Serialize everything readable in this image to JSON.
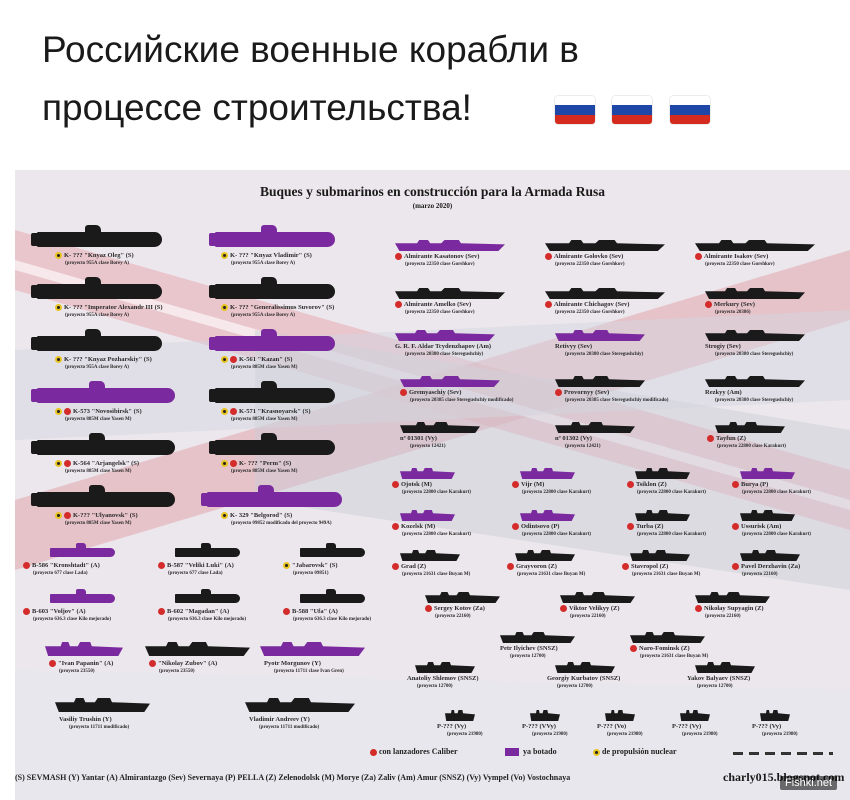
{
  "header": {
    "line1": "Российские военные корабли в",
    "line2": "процессе строительства!",
    "flags": [
      "russia-flag",
      "russia-flag",
      "russia-flag"
    ],
    "flag_colors": [
      "#ffffff",
      "#1f47a8",
      "#d52b1e"
    ]
  },
  "infographic": {
    "title": "Buques y submarinos en construcción para la Armada Rusa",
    "date": "(marzo 2020)",
    "colors": {
      "built": "#7a2a9e",
      "unbuilt": "#1a1a1a",
      "caliber": "#d42b2b",
      "nuclear": "#e8c420"
    },
    "submarines_left": [
      {
        "name": "K- ??? \"Knyaz Oleg\" (S)",
        "project": "(proyecto 955A clase Borey A)",
        "launched": false,
        "nuclear": true,
        "caliber": false
      },
      {
        "name": "K- ??? \"Imperator Alexandr III (S)",
        "project": "(proyecto 955A clase Borey A)",
        "launched": false,
        "nuclear": true,
        "caliber": false
      },
      {
        "name": "K- ??? \"Knyaz Pozharskiy\" (S)",
        "project": "(proyecto 955A clase Borey A)",
        "launched": false,
        "nuclear": true,
        "caliber": false
      },
      {
        "name": "K-573 \"Novosibirsk\" (S)",
        "project": "(proyecto 885M clase Yasen M)",
        "launched": true,
        "nuclear": true,
        "caliber": true
      },
      {
        "name": "K-564 \"Arjangelsk\" (S)",
        "project": "(proyecto 885M clase Yasen M)",
        "launched": false,
        "nuclear": true,
        "caliber": true
      },
      {
        "name": "K-??? \"Ulyanovsk\" (S)",
        "project": "(proyecto 885M clase Yasen M)",
        "launched": false,
        "nuclear": true,
        "caliber": true
      }
    ],
    "submarines_mid": [
      {
        "name": "K- ??? \"Knyaz Vladimir\" (S)",
        "project": "(proyecto 955A clase Borey A)",
        "launched": true,
        "nuclear": true,
        "caliber": false
      },
      {
        "name": "K- ??? \"Generalissimus Suvorov\" (S)",
        "project": "(proyecto 955A clase Borey A)",
        "launched": false,
        "nuclear": true,
        "caliber": false
      },
      {
        "name": "K-561 \"Kazan\" (S)",
        "project": "(proyecto 885M clase Yasen M)",
        "launched": true,
        "nuclear": true,
        "caliber": true
      },
      {
        "name": "K-571 \"Krasnoyarsk\" (S)",
        "project": "(proyecto 885M clase Yasen M)",
        "launched": false,
        "nuclear": true,
        "caliber": true
      },
      {
        "name": "K- ??? \"Perm\" (S)",
        "project": "(proyecto 885M clase Yasen M)",
        "launched": false,
        "nuclear": true,
        "caliber": true
      },
      {
        "name": "K- 329 \"Belgorod\" (S)",
        "project": "(proyecto 09852 modificado del proyecto 949A)",
        "launched": true,
        "nuclear": true,
        "caliber": false
      }
    ],
    "diesel_subs": [
      {
        "name": "B-586 \"Kronshtadt\" (A)",
        "project": "(proyecto 677 clase Lada)",
        "launched": true,
        "caliber": true
      },
      {
        "name": "B-587 \"Veliki Luki\" (A)",
        "project": "(proyecto 677 clase Lada)",
        "launched": false,
        "caliber": true
      },
      {
        "name": "\"Jabarovsk\" (S)",
        "project": "(proyecto 09851)",
        "launched": false,
        "nuclear": true
      },
      {
        "name": "B-603 \"Voljov\" (A)",
        "project": "(proyecto 636.3 clase Kilo mejorado)",
        "launched": true,
        "caliber": true
      },
      {
        "name": "B-602 \"Magadan\" (A)",
        "project": "(proyecto 636.3 clase Kilo mejorado)",
        "launched": false,
        "caliber": true
      },
      {
        "name": "B-588 \"Ufa\" (A)",
        "project": "(proyecto 636.3 clase Kilo mejorado)",
        "launched": false,
        "caliber": true
      }
    ],
    "ships": [
      {
        "name": "Almirante Kasatonov (Sev)",
        "project": "(proyecto 22350 clase Gorshkov)",
        "launched": true,
        "caliber": true
      },
      {
        "name": "Almirante Golovko (Sev)",
        "project": "(proyecto 22350 clase Gorshkov)",
        "launched": false,
        "caliber": true
      },
      {
        "name": "Almirante Isakov (Sev)",
        "project": "(proyecto 22350 clase Gorshkov)",
        "launched": false,
        "caliber": true
      },
      {
        "name": "Almirante Amelko (Sev)",
        "project": "(proyecto 22350 clase Gorshkov)",
        "launched": false,
        "caliber": true
      },
      {
        "name": "Almirante Chichagov (Sev)",
        "project": "(proyecto 22350 clase Gorshkov)",
        "launched": false,
        "caliber": true
      },
      {
        "name": "Merkury (Sev)",
        "project": "(proyecto 20386)",
        "launched": false,
        "caliber": true
      },
      {
        "name": "G. R. F. Aldar Tcydenzhapov (Am)",
        "project": "(proyecto 20380 clase Steregushchiy)",
        "launched": true,
        "caliber": false
      },
      {
        "name": "Retivyy (Sev)",
        "project": "(proyecto 20380 clase Steregushchiy)",
        "launched": true,
        "caliber": false
      },
      {
        "name": "Strogiy (Sev)",
        "project": "(proyecto 20380 clase Steregushchiy)",
        "launched": false,
        "caliber": false
      },
      {
        "name": "Gremyaschiy (Sev)",
        "project": "(proyecto 20385 clase Steregushchiy modificado)",
        "launched": true,
        "caliber": true
      },
      {
        "name": "Provornyy (Sev)",
        "project": "(proyecto 20385 clase Steregushchiy modificado)",
        "launched": false,
        "caliber": true
      },
      {
        "name": "Rezkyy (Am)",
        "project": "(proyecto 20380 clase Steregushchiy)",
        "launched": false,
        "caliber": false
      },
      {
        "name": "nº 01301 (Vy)",
        "project": "(proyecto 12421)",
        "launched": false,
        "caliber": false
      },
      {
        "name": "nº 01302 (Vy)",
        "project": "(proyecto 12421)",
        "launched": false,
        "caliber": false
      },
      {
        "name": "Tayfun (Z)",
        "project": "(proyecto 22800 clase Karakurt)",
        "launched": false,
        "caliber": true
      },
      {
        "name": "Ojotsk (M)",
        "project": "(proyecto 22800 clase Karakurt)",
        "launched": true,
        "caliber": true
      },
      {
        "name": "Vijr (M)",
        "project": "(proyecto 22800 clase Karakurt)",
        "launched": true,
        "caliber": true
      },
      {
        "name": "Tsiklon (Z)",
        "project": "(proyecto 22800 clase Karakurt)",
        "launched": false,
        "caliber": true
      },
      {
        "name": "Burya (P)",
        "project": "(proyecto 22800 clase Karakurt)",
        "launched": true,
        "caliber": true
      },
      {
        "name": "Kozelsk (M)",
        "project": "(proyecto 22800 clase Karakurt)",
        "launched": true,
        "caliber": true
      },
      {
        "name": "Odintsovo (P)",
        "project": "(proyecto 22800 clase Karakurt)",
        "launched": true,
        "caliber": true
      },
      {
        "name": "Turba (Z)",
        "project": "(proyecto 22800 clase Karakurt)",
        "launched": false,
        "caliber": true
      },
      {
        "name": "Ussurisk (Am)",
        "project": "(proyecto 22800 clase Karakurt)",
        "launched": false,
        "caliber": true
      },
      {
        "name": "Grad (Z)",
        "project": "(proyecto 21631 clase Buyan M)",
        "launched": false,
        "caliber": true
      },
      {
        "name": "Grayvoron (Z)",
        "project": "(proyecto 21631 clase Buyan M)",
        "launched": false,
        "caliber": true
      },
      {
        "name": "Stavropol (Z)",
        "project": "(proyecto 21631 clase Buyan M)",
        "launched": false,
        "caliber": true
      },
      {
        "name": "Pavel Derzhavin (Za)",
        "project": "(proyecto 22160)",
        "launched": false,
        "caliber": true
      },
      {
        "name": "Sergey Kotov (Za)",
        "project": "(proyecto 22160)",
        "launched": false,
        "caliber": true
      },
      {
        "name": "Viktor Velikyy (Z)",
        "project": "(proyecto 22160)",
        "launched": false,
        "caliber": true
      },
      {
        "name": "Nikolay Supyagin (Z)",
        "project": "(proyecto 22160)",
        "launched": false,
        "caliber": true
      },
      {
        "name": "Petr Ilyichev (SNSZ)",
        "project": "(proyecto 12700)",
        "launched": false,
        "caliber": false
      },
      {
        "name": "Naro-Fominsk (Z)",
        "project": "(proyecto 21631 clase Buyan M)",
        "launched": false,
        "caliber": true
      },
      {
        "name": "Anatoliy Shlemov (SNSZ)",
        "project": "(proyecto 12700)",
        "launched": false,
        "caliber": false
      },
      {
        "name": "Georgiy Kurbatov (SNSZ)",
        "project": "(proyecto 12700)",
        "launched": false,
        "caliber": false
      },
      {
        "name": "Yakov Balyaev (SNSZ)",
        "project": "(proyecto 12700)",
        "launched": false,
        "caliber": false
      },
      {
        "name": "P-??? (Vy)",
        "project": "(proyecto 21980)",
        "launched": false,
        "caliber": false
      },
      {
        "name": "P-??? (VVy)",
        "project": "(proyecto 21980)",
        "launched": false,
        "caliber": false
      },
      {
        "name": "P-??? (Vo)",
        "project": "(proyecto 21980)",
        "launched": false,
        "caliber": false
      },
      {
        "name": "P-??? (Vy)",
        "project": "(proyecto 21980)",
        "launched": false,
        "caliber": false
      },
      {
        "name": "P-??? (Vy)",
        "project": "(proyecto 21980)",
        "launched": false,
        "caliber": false
      }
    ],
    "bottom_left": [
      {
        "name": "\"Ivan Papanin\" (A)",
        "project": "(proyecto 23550)",
        "launched": true,
        "caliber": true
      },
      {
        "name": "\"Nikolay Zubov\" (A)",
        "project": "(proyecto 23550)",
        "launched": false,
        "caliber": true
      },
      {
        "name": "Pyotr Morgunov (Y)",
        "project": "(proyecto 11711 clase Ivan Gren)",
        "launched": true,
        "caliber": false
      },
      {
        "name": "Vasiliy Trushin (Y)",
        "project": "(proyecto 11711 modificado)",
        "launched": false,
        "caliber": false
      },
      {
        "name": "Vladimir Andreev (Y)",
        "project": "(proyecto 11711 modificado)",
        "launched": false,
        "caliber": false
      }
    ],
    "legend": {
      "caliber": "con lanzadores Caliber",
      "launched": "ya botado",
      "nuclear": "de propulsión nuclear"
    },
    "footer": "(S) SEVMASH (Y) Yantar (A) Almirantazgo (Sev) Severnaya (P) PELLA (Z) Zelenodolsk (M) Morye (Za) Zaliv (Am) Amur (SNSZ) (Vy) Vympel (Vo) Vostochnaya",
    "site": "charly015.blogspot.com"
  },
  "watermark": "Fishki.net"
}
